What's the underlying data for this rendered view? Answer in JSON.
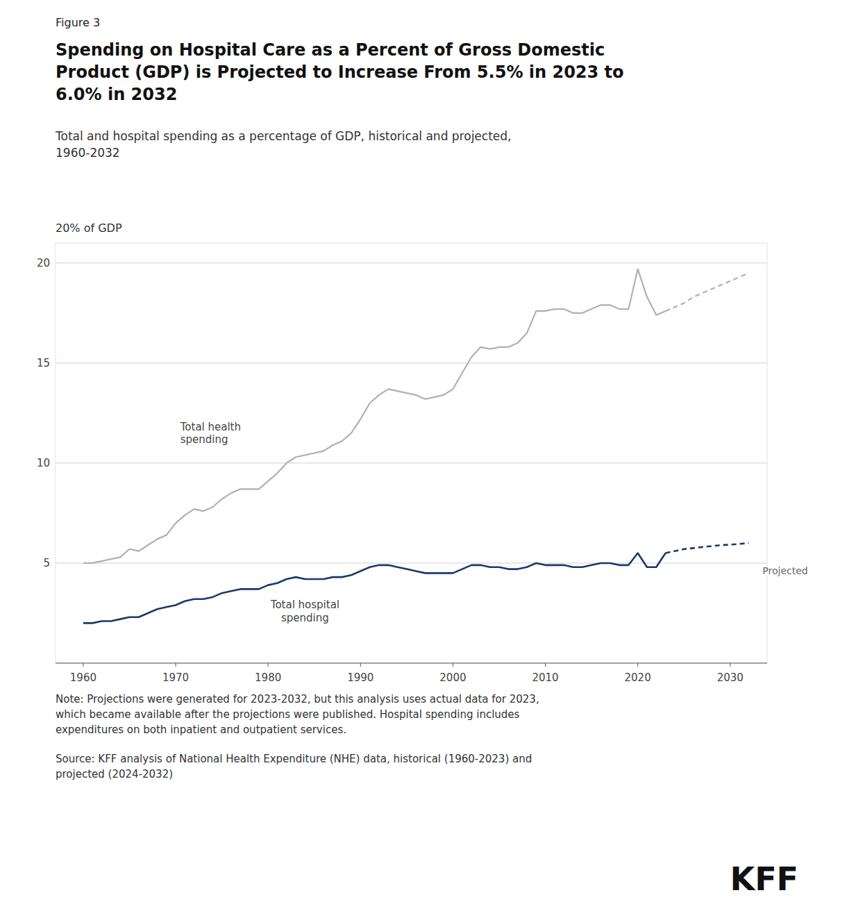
{
  "chart_data": {
    "type": "line",
    "figure_label": "Figure 3",
    "title": "Spending on Hospital Care as a Percent of Gross Domestic\nProduct (GDP) is Projected to Increase From 5.5% in 2023 to\n6.0% in 2032",
    "subtitle": "Total and hospital spending as a percentage of GDP, historical and projected,\n1960-2032",
    "ylabel": "20% of GDP",
    "note": "Note: Projections were generated for 2023-2032, but this analysis uses actual data for 2023,\nwhich became available after the projections were published. Hospital spending includes\nexpenditures on both inpatient and outpatient services.",
    "source": "Source: KFF analysis of National Health Expenditure (NHE) data, historical (1960-2023) and\nprojected (2024-2032)",
    "logo": "KFF",
    "series": [
      {
        "color": "#b0b0b0",
        "line_style": "solid",
        "x": [
          1960,
          1961,
          1962,
          1963,
          1964,
          1965,
          1966,
          1967,
          1968,
          1969,
          1970,
          1971,
          1972,
          1973,
          1974,
          1975,
          1976,
          1977,
          1978,
          1979,
          1980,
          1981,
          1982,
          1983,
          1984,
          1985,
          1986,
          1987,
          1988,
          1989,
          1990,
          1991,
          1992,
          1993,
          1994,
          1995,
          1996,
          1997,
          1998,
          1999,
          2000,
          2001,
          2002,
          2003,
          2004,
          2005,
          2006,
          2007,
          2008,
          2009,
          2010,
          2011,
          2012,
          2013,
          2014,
          2015,
          2016,
          2017,
          2018,
          2019,
          2020,
          2021,
          2022,
          2023
        ],
        "values": [
          5.0,
          5.0,
          5.1,
          5.2,
          5.3,
          5.7,
          5.6,
          5.9,
          6.2,
          6.4,
          7.0,
          7.4,
          7.7,
          7.6,
          7.8,
          8.2,
          8.5,
          8.7,
          8.7,
          8.7,
          9.1,
          9.5,
          10.0,
          10.3,
          10.4,
          10.5,
          10.6,
          10.9,
          11.1,
          11.5,
          12.2,
          13.0,
          13.4,
          13.7,
          13.6,
          13.5,
          13.4,
          13.2,
          13.3,
          13.4,
          13.7,
          14.5,
          15.3,
          15.8,
          15.7,
          15.8,
          15.8,
          16.0,
          16.5,
          17.6,
          17.6,
          17.7,
          17.7,
          17.5,
          17.5,
          17.7,
          17.9,
          17.9,
          17.7,
          17.7,
          19.7,
          18.3,
          17.4,
          17.6
        ]
      },
      {
        "color": "#b0b0b0",
        "line_style": "dashed",
        "x": [
          2023,
          2024,
          2025,
          2026,
          2027,
          2028,
          2029,
          2030,
          2031,
          2032
        ],
        "values": [
          17.6,
          17.8,
          18.0,
          18.3,
          18.5,
          18.7,
          18.9,
          19.1,
          19.3,
          19.5
        ]
      },
      {
        "color": "#1a3a6b",
        "line_style": "solid",
        "x": [
          1960,
          1961,
          1962,
          1963,
          1964,
          1965,
          1966,
          1967,
          1968,
          1969,
          1970,
          1971,
          1972,
          1973,
          1974,
          1975,
          1976,
          1977,
          1978,
          1979,
          1980,
          1981,
          1982,
          1983,
          1984,
          1985,
          1986,
          1987,
          1988,
          1989,
          1990,
          1991,
          1992,
          1993,
          1994,
          1995,
          1996,
          1997,
          1998,
          1999,
          2000,
          2001,
          2002,
          2003,
          2004,
          2005,
          2006,
          2007,
          2008,
          2009,
          2010,
          2011,
          2012,
          2013,
          2014,
          2015,
          2016,
          2017,
          2018,
          2019,
          2020,
          2021,
          2022,
          2023
        ],
        "values": [
          2.0,
          2.0,
          2.1,
          2.1,
          2.2,
          2.3,
          2.3,
          2.5,
          2.7,
          2.8,
          2.9,
          3.1,
          3.2,
          3.2,
          3.3,
          3.5,
          3.6,
          3.7,
          3.7,
          3.7,
          3.9,
          4.0,
          4.2,
          4.3,
          4.2,
          4.2,
          4.2,
          4.3,
          4.3,
          4.4,
          4.6,
          4.8,
          4.9,
          4.9,
          4.8,
          4.7,
          4.6,
          4.5,
          4.5,
          4.5,
          4.5,
          4.7,
          4.9,
          4.9,
          4.8,
          4.8,
          4.7,
          4.7,
          4.8,
          5.0,
          4.9,
          4.9,
          4.9,
          4.8,
          4.8,
          4.9,
          5.0,
          5.0,
          4.9,
          4.9,
          5.5,
          4.8,
          4.8,
          5.5
        ]
      },
      {
        "color": "#1a3a6b",
        "line_style": "dashed",
        "x": [
          2023,
          2024,
          2025,
          2026,
          2027,
          2028,
          2029,
          2030,
          2031,
          2032
        ],
        "values": [
          5.5,
          5.6,
          5.7,
          5.75,
          5.8,
          5.85,
          5.9,
          5.92,
          5.96,
          6.0
        ]
      }
    ],
    "annotations": [
      {
        "text": "Total health\nspending",
        "x": 1970.5,
        "y": 11.5
      },
      {
        "text": "Total hospital\nspending",
        "x": 1984,
        "y": 3.15
      },
      {
        "text": "Projected",
        "x": 2033.5,
        "y": 4.6
      }
    ],
    "xlim": [
      1957,
      2034
    ],
    "ylim": [
      0,
      21
    ],
    "xticks": [
      1960,
      1970,
      1980,
      1990,
      2000,
      2010,
      2020,
      2030
    ],
    "yticks": [
      5,
      10,
      15,
      20
    ],
    "grid": true
  }
}
